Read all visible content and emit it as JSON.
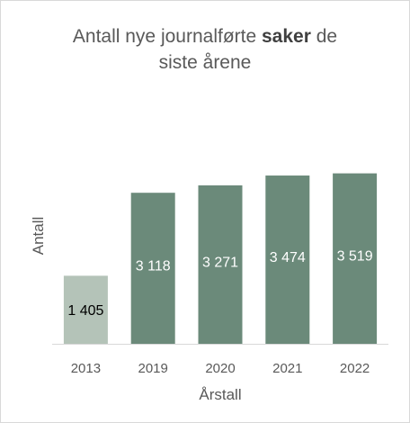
{
  "chart_data": {
    "type": "bar",
    "title": {
      "part1": "Antall nye journalførte ",
      "bold": "saker",
      "part2": " de",
      "line2": "siste årene"
    },
    "xlabel": "Årstall",
    "ylabel": "Antall",
    "categories": [
      "2013",
      "2019",
      "2020",
      "2021",
      "2022"
    ],
    "values": [
      1405,
      3118,
      3271,
      3474,
      3519
    ],
    "value_labels": [
      "1 405",
      "3 118",
      "3 271",
      "3 474",
      "3 519"
    ],
    "ylim": [
      0,
      5500
    ],
    "grid": false,
    "legend": "none",
    "colors": {
      "highlight_bar": "#b4c3b8",
      "bar": "#6b8a7a",
      "highlight_label": "#000000",
      "label": "#ffffff",
      "axis": "#d9d9d9"
    }
  }
}
